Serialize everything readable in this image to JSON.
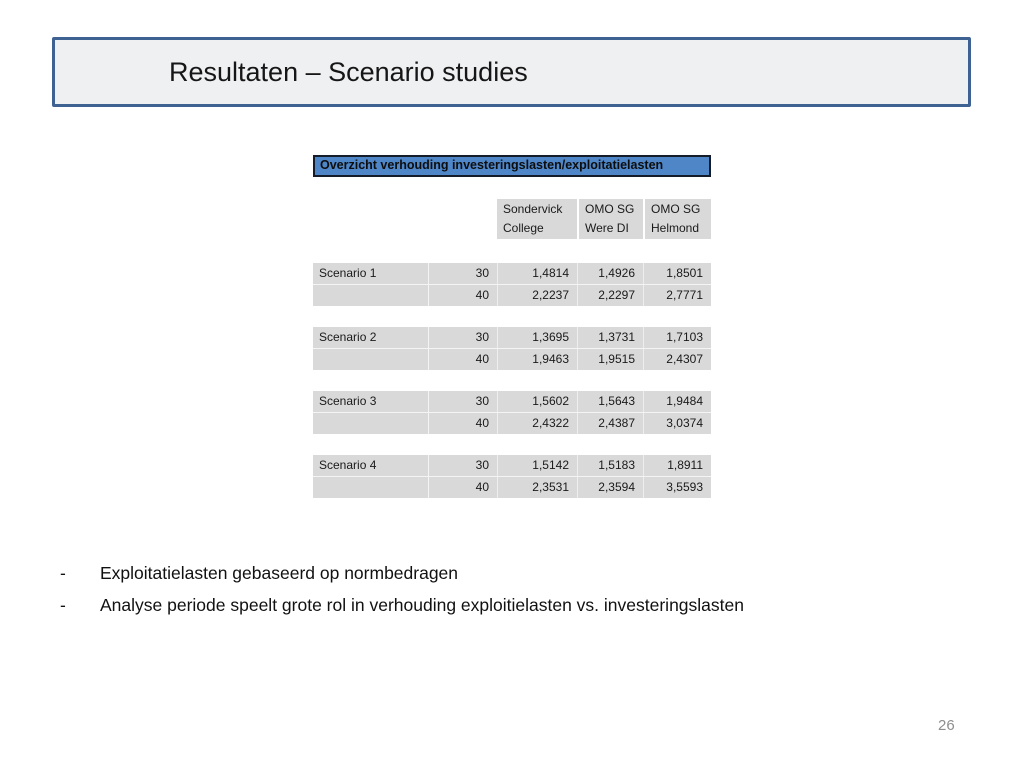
{
  "slide": {
    "title": "Resultaten – Scenario studies",
    "page_number": "26"
  },
  "table": {
    "title": "Overzicht verhouding investeringslasten/exploitatielasten",
    "columns": [
      {
        "line1": "Sondervick",
        "line2": "College"
      },
      {
        "line1": "OMO SG",
        "line2": "Were DI"
      },
      {
        "line1": "OMO SG",
        "line2": "Helmond"
      }
    ],
    "scenarios": [
      {
        "label": "Scenario 1",
        "rows": [
          {
            "years": "30",
            "values": [
              "1,4814",
              "1,4926",
              "1,8501"
            ]
          },
          {
            "years": "40",
            "values": [
              "2,2237",
              "2,2297",
              "2,7771"
            ]
          }
        ]
      },
      {
        "label": "Scenario 2",
        "rows": [
          {
            "years": "30",
            "values": [
              "1,3695",
              "1,3731",
              "1,7103"
            ]
          },
          {
            "years": "40",
            "values": [
              "1,9463",
              "1,9515",
              "2,4307"
            ]
          }
        ]
      },
      {
        "label": "Scenario 3",
        "rows": [
          {
            "years": "30",
            "values": [
              "1,5602",
              "1,5643",
              "1,9484"
            ]
          },
          {
            "years": "40",
            "values": [
              "2,4322",
              "2,4387",
              "3,0374"
            ]
          }
        ]
      },
      {
        "label": "Scenario 4",
        "rows": [
          {
            "years": "30",
            "values": [
              "1,5142",
              "1,5183",
              "1,8911"
            ]
          },
          {
            "years": "40",
            "values": [
              "2,3531",
              "2,3594",
              "3,5593"
            ]
          }
        ]
      }
    ]
  },
  "bullets": [
    {
      "marker": "-",
      "text": "Exploitatielasten gebaseerd op normbedragen"
    },
    {
      "marker": "-",
      "text": "Analyse periode speelt grote rol in verhouding exploitielasten vs. investeringslasten"
    }
  ],
  "colors": {
    "accent_blue": "#4e86c8",
    "box_border_blue": "#3e6292",
    "cell_gray": "#d9d9d9"
  }
}
